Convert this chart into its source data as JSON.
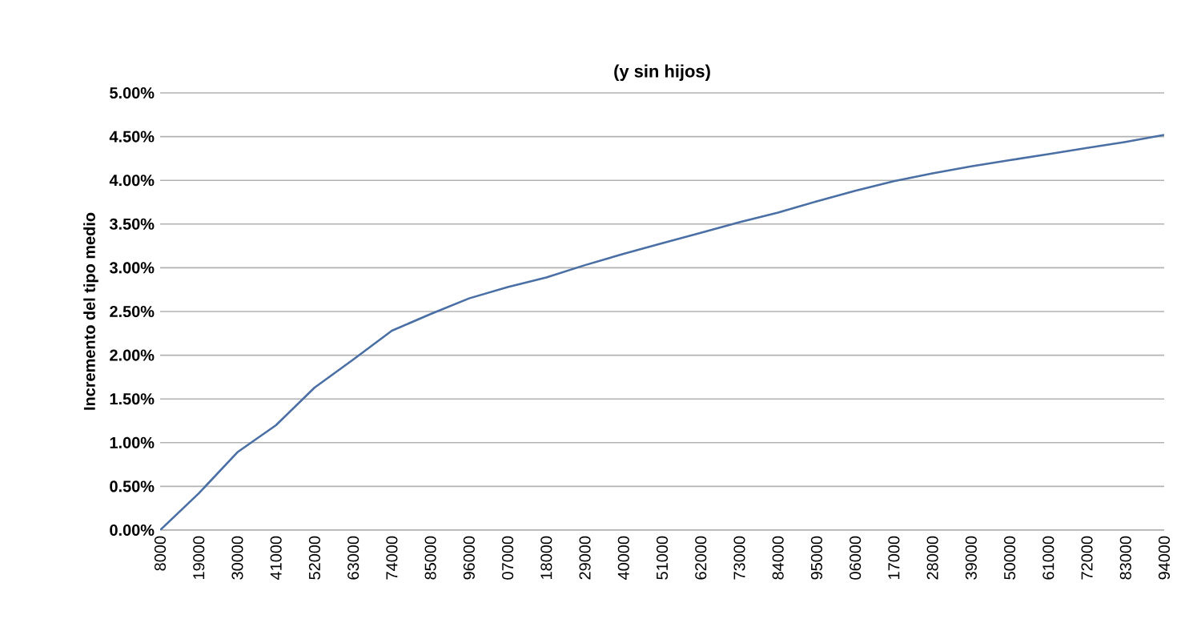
{
  "chart_data": {
    "type": "line",
    "title": "(y sin hijos)",
    "ylabel": "Incremento del tipo medio",
    "categories": [
      "8000",
      "19000",
      "30000",
      "41000",
      "52000",
      "63000",
      "74000",
      "85000",
      "96000",
      "07000",
      "18000",
      "29000",
      "40000",
      "51000",
      "62000",
      "73000",
      "84000",
      "95000",
      "06000",
      "17000",
      "28000",
      "39000",
      "50000",
      "61000",
      "72000",
      "83000",
      "94000"
    ],
    "values": [
      0,
      0.42,
      0.89,
      1.2,
      1.63,
      1.95,
      2.28,
      2.47,
      2.65,
      2.78,
      2.89,
      3.03,
      3.16,
      3.28,
      3.4,
      3.52,
      3.63,
      3.76,
      3.88,
      3.99,
      4.08,
      4.16,
      4.23,
      4.3,
      4.37,
      4.44,
      4.52
    ],
    "color": "#4a6fa5",
    "ylim": [
      0,
      5
    ],
    "yticks": [
      {
        "value": 0,
        "label": "0.00%"
      },
      {
        "value": 0.5,
        "label": "0.50%"
      },
      {
        "value": 1,
        "label": "1.00%"
      },
      {
        "value": 1.5,
        "label": "1.50%"
      },
      {
        "value": 2,
        "label": "2.00%"
      },
      {
        "value": 2.5,
        "label": "2.50%"
      },
      {
        "value": 3,
        "label": "3.00%"
      },
      {
        "value": 3.5,
        "label": "3.50%"
      },
      {
        "value": 4,
        "label": "4.00%"
      },
      {
        "value": 4.5,
        "label": "4.50%"
      },
      {
        "value": 5,
        "label": "5.00%"
      }
    ],
    "grid": "y",
    "marker": "none",
    "line_style": "solid"
  }
}
